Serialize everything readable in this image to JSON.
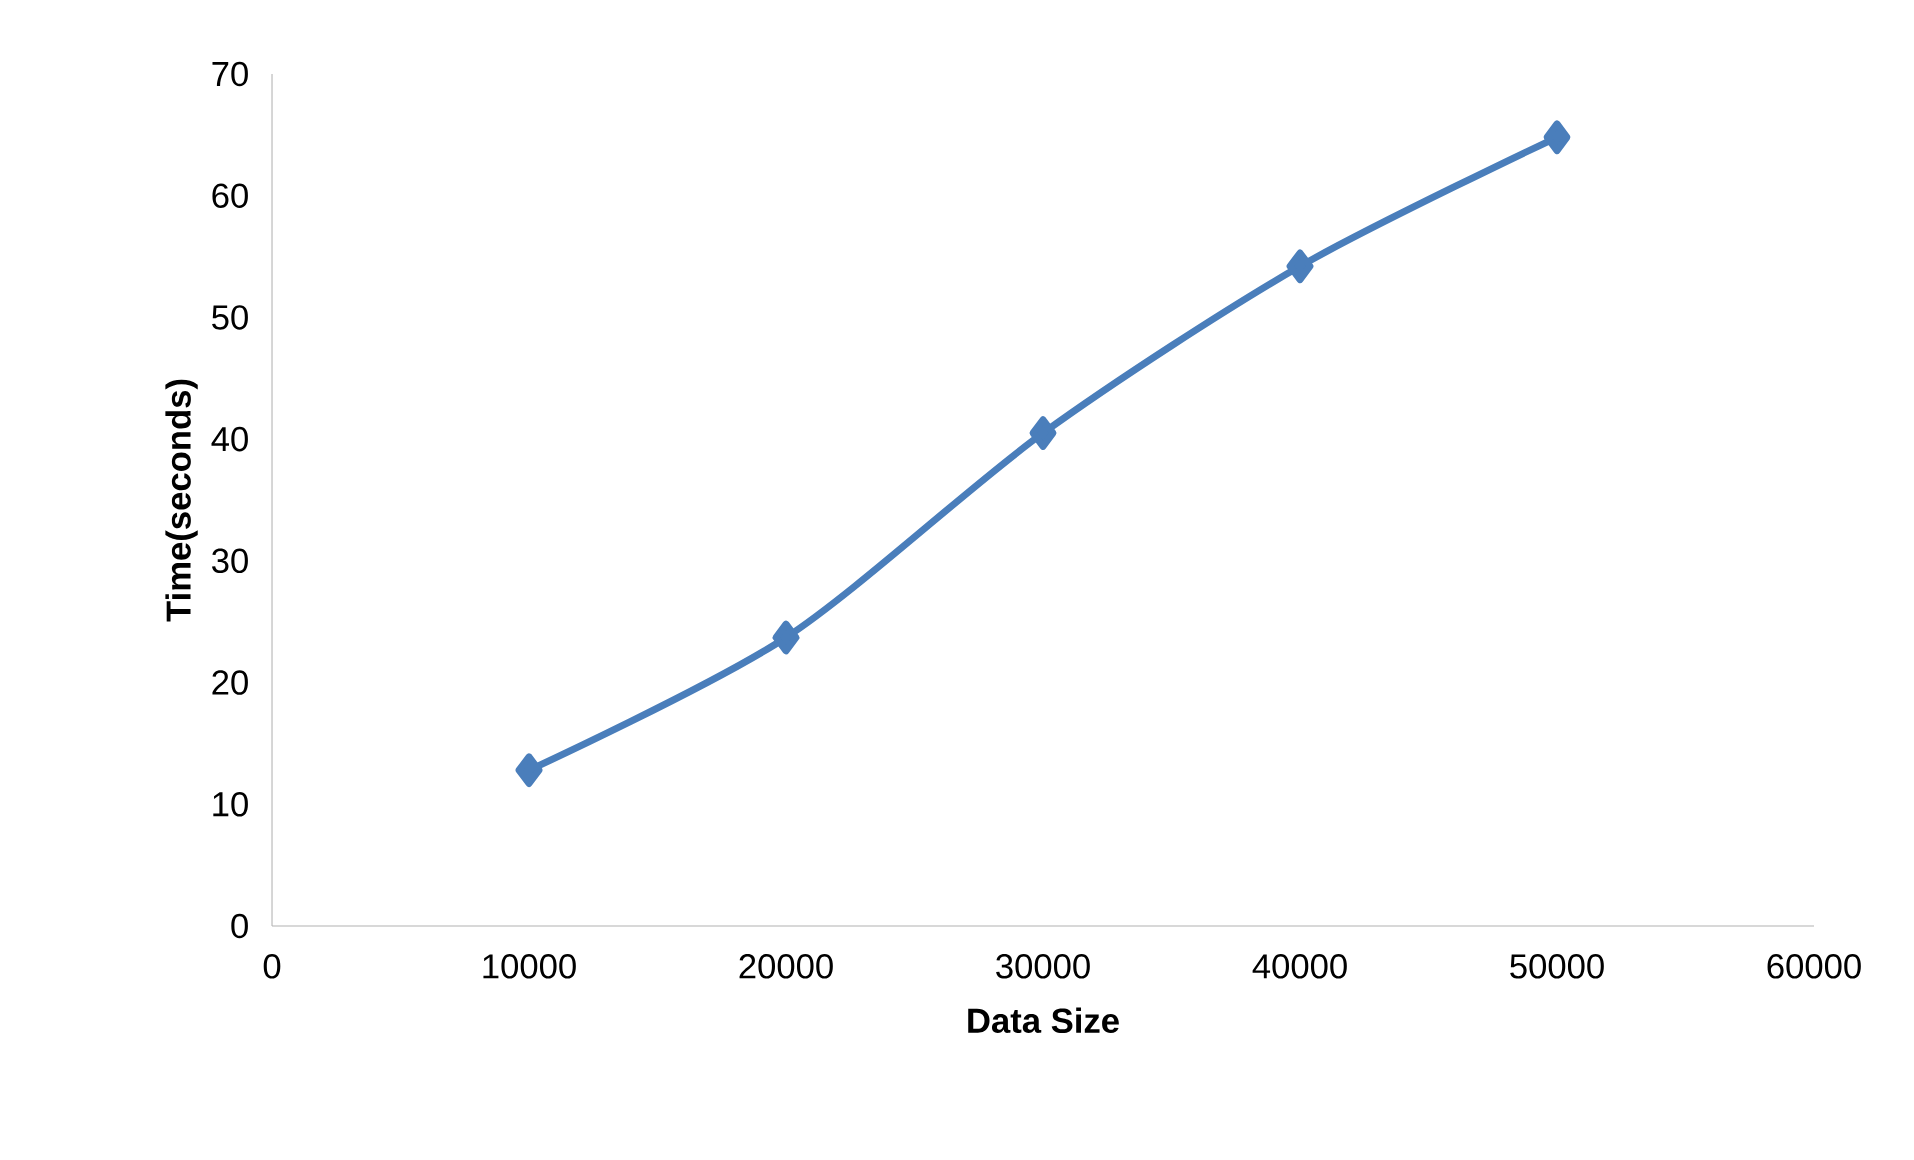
{
  "chart_data": {
    "type": "line",
    "xlabel": "Data Size",
    "ylabel": "Time(seconds)",
    "x": [
      10000,
      20000,
      30000,
      40000,
      50000
    ],
    "values": [
      12.8,
      23.7,
      40.5,
      54.2,
      64.8
    ],
    "color": "#4a7ebb",
    "marker": "diamond",
    "line_style": "solid",
    "xlim": [
      0,
      60000
    ],
    "ylim": [
      0,
      70
    ],
    "xticks": [
      0,
      10000,
      20000,
      30000,
      40000,
      50000,
      60000
    ],
    "yticks": [
      0,
      10,
      20,
      30,
      40,
      50,
      60,
      70
    ]
  }
}
